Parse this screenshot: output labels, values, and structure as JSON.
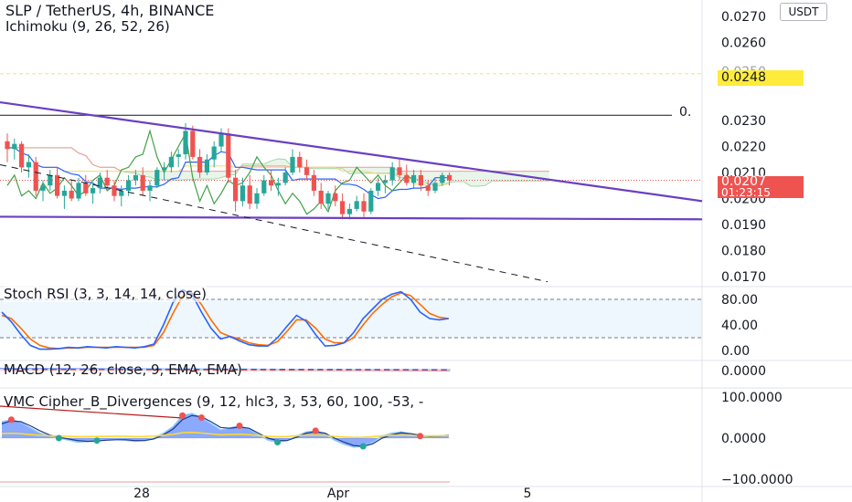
{
  "header": {
    "symbol": "SLP / TetherUS, 4h, BINANCE",
    "indicator": "Ichimoku (9, 26, 52, 26)",
    "currency": "USDT"
  },
  "price_badges": {
    "yellow_level": "0.0248",
    "yellow_level_behind": "0.0250",
    "current_price": "0.0207",
    "countdown": "01:23:15",
    "line_label": "0."
  },
  "panes": {
    "stoch_title": "Stoch RSI (3, 3, 14, 14, close)",
    "macd_title": "MACD (12, 26, close, 9, EMA, EMA)",
    "vmc_title": "VMC Cipher_B_Divergences (9, 12, hlc3, 3, 53, 60, 100, -53, -"
  },
  "colors": {
    "bull": "#26a69a",
    "bear": "#ef5350",
    "trendline": "#6a3fc1",
    "stoch_k": "#2962ff",
    "stoch_d": "#ff6d00",
    "yellow_badge": "#ffeb3b",
    "price_badge": "#ef5350"
  },
  "chart_data": [
    {
      "type": "candlestick",
      "title": "SLP / TetherUS, 4h, BINANCE",
      "y_ticks": [
        "0.0270",
        "0.0260",
        "0.0250",
        "0.0230",
        "0.0220",
        "0.0210",
        "0.0200",
        "0.0190",
        "0.0180",
        "0.0170"
      ],
      "x_ticks": [
        "28",
        "Apr",
        "5"
      ],
      "current_price": 0.0207,
      "horizontal_levels": [
        0.0248,
        0.0232
      ],
      "trendlines": [
        {
          "name": "descending resistance",
          "from": [
            0,
            0.0237
          ],
          "to": [
            1,
            0.0199
          ]
        },
        {
          "name": "support",
          "from": [
            0,
            0.0193
          ],
          "to": [
            1,
            0.0192
          ]
        },
        {
          "name": "dashed projection",
          "from": [
            0,
            0.0213
          ],
          "to": [
            0.78,
            0.0168
          ]
        }
      ],
      "candles": [
        [
          0.0222,
          0.0225,
          0.0214,
          0.0219
        ],
        [
          0.0219,
          0.0223,
          0.0215,
          0.0221
        ],
        [
          0.0221,
          0.0222,
          0.021,
          0.0212
        ],
        [
          0.0212,
          0.0217,
          0.0208,
          0.0214
        ],
        [
          0.0214,
          0.0216,
          0.0201,
          0.0203
        ],
        [
          0.0203,
          0.0207,
          0.0199,
          0.0205
        ],
        [
          0.0205,
          0.0211,
          0.0203,
          0.0209
        ],
        [
          0.0209,
          0.0212,
          0.02,
          0.0201
        ],
        [
          0.0201,
          0.0205,
          0.0196,
          0.0203
        ],
        [
          0.0203,
          0.0207,
          0.0199,
          0.02
        ],
        [
          0.02,
          0.0208,
          0.0199,
          0.0206
        ],
        [
          0.0206,
          0.0209,
          0.0201,
          0.0202
        ],
        [
          0.0202,
          0.0206,
          0.0198,
          0.0204
        ],
        [
          0.0204,
          0.021,
          0.0202,
          0.0208
        ],
        [
          0.0208,
          0.0211,
          0.0203,
          0.0205
        ],
        [
          0.0205,
          0.0207,
          0.0199,
          0.0201
        ],
        [
          0.0201,
          0.0205,
          0.0197,
          0.0203
        ],
        [
          0.0203,
          0.0209,
          0.0201,
          0.0207
        ],
        [
          0.0207,
          0.0211,
          0.0205,
          0.0209
        ],
        [
          0.0209,
          0.0212,
          0.0201,
          0.0203
        ],
        [
          0.0203,
          0.0207,
          0.0199,
          0.0205
        ],
        [
          0.0205,
          0.0212,
          0.0204,
          0.0211
        ],
        [
          0.0211,
          0.0214,
          0.0207,
          0.0212
        ],
        [
          0.0212,
          0.0218,
          0.021,
          0.0216
        ],
        [
          0.0216,
          0.0219,
          0.0212,
          0.0217
        ],
        [
          0.0217,
          0.0229,
          0.0215,
          0.0226
        ],
        [
          0.0226,
          0.0228,
          0.0215,
          0.0216
        ],
        [
          0.0216,
          0.0219,
          0.0208,
          0.021
        ],
        [
          0.021,
          0.0217,
          0.0209,
          0.0215
        ],
        [
          0.0215,
          0.0222,
          0.0212,
          0.022
        ],
        [
          0.022,
          0.0227,
          0.0218,
          0.0225
        ],
        [
          0.0225,
          0.0227,
          0.0206,
          0.0208
        ],
        [
          0.0208,
          0.0211,
          0.0195,
          0.0199
        ],
        [
          0.0199,
          0.0208,
          0.0197,
          0.0205
        ],
        [
          0.0205,
          0.0209,
          0.0196,
          0.0198
        ],
        [
          0.0198,
          0.0204,
          0.0196,
          0.0202
        ],
        [
          0.0202,
          0.0209,
          0.0201,
          0.0207
        ],
        [
          0.0207,
          0.0211,
          0.0203,
          0.0205
        ],
        [
          0.0205,
          0.0208,
          0.0201,
          0.0206
        ],
        [
          0.0206,
          0.0212,
          0.0205,
          0.021
        ],
        [
          0.021,
          0.0219,
          0.0209,
          0.0216
        ],
        [
          0.0216,
          0.0218,
          0.021,
          0.0212
        ],
        [
          0.0212,
          0.0215,
          0.0207,
          0.0209
        ],
        [
          0.0209,
          0.0211,
          0.0201,
          0.0203
        ],
        [
          0.0203,
          0.0206,
          0.0196,
          0.0198
        ],
        [
          0.0198,
          0.0203,
          0.0196,
          0.0202
        ],
        [
          0.0202,
          0.0205,
          0.0197,
          0.0199
        ],
        [
          0.0199,
          0.0202,
          0.0192,
          0.0194
        ],
        [
          0.0194,
          0.0198,
          0.0192,
          0.0196
        ],
        [
          0.0196,
          0.0201,
          0.0195,
          0.0199
        ],
        [
          0.0199,
          0.0202,
          0.0193,
          0.0195
        ],
        [
          0.0195,
          0.0204,
          0.0194,
          0.0203
        ],
        [
          0.0203,
          0.0208,
          0.0201,
          0.0206
        ],
        [
          0.0206,
          0.0209,
          0.0202,
          0.0207
        ],
        [
          0.0207,
          0.0214,
          0.0205,
          0.0212
        ],
        [
          0.0212,
          0.0215,
          0.0207,
          0.0209
        ],
        [
          0.0209,
          0.0213,
          0.0205,
          0.0206
        ],
        [
          0.0206,
          0.0211,
          0.0204,
          0.0209
        ],
        [
          0.0209,
          0.0211,
          0.0203,
          0.0205
        ],
        [
          0.0205,
          0.0207,
          0.0201,
          0.0203
        ],
        [
          0.0203,
          0.0208,
          0.0202,
          0.0206
        ],
        [
          0.0206,
          0.021,
          0.0205,
          0.0209
        ],
        [
          0.0209,
          0.021,
          0.0205,
          0.0207
        ]
      ]
    },
    {
      "type": "line",
      "title": "Stoch RSI (3, 3, 14, 14, close)",
      "y_ticks": [
        "80.00",
        "40.00",
        "0.00"
      ],
      "band": [
        20,
        80
      ],
      "series": [
        {
          "values": [
            60,
            45,
            25,
            8,
            2,
            2,
            3,
            5,
            4,
            6,
            5,
            4,
            6,
            5,
            4,
            6,
            10,
            40,
            75,
            95,
            88,
            60,
            35,
            18,
            22,
            15,
            9,
            7,
            7,
            20,
            38,
            55,
            46,
            25,
            7,
            8,
            12,
            28,
            50,
            65,
            80,
            88,
            92,
            80,
            60,
            50,
            48,
            50
          ]
        },
        {
          "values": [
            55,
            50,
            35,
            18,
            8,
            4,
            3,
            4,
            4,
            5,
            5,
            5,
            5,
            5,
            5,
            5,
            8,
            28,
            58,
            85,
            90,
            72,
            48,
            28,
            22,
            18,
            12,
            9,
            8,
            14,
            30,
            48,
            48,
            35,
            18,
            12,
            12,
            20,
            40,
            58,
            72,
            84,
            90,
            86,
            72,
            58,
            52,
            50
          ]
        }
      ]
    },
    {
      "type": "line",
      "title": "MACD (12, 26, close, 9, EMA, EMA)",
      "y_ticks": [
        "0.0000"
      ]
    },
    {
      "type": "area",
      "title": "VMC Cipher_B_Divergences (9, 12, hlc3, 3, 53, 60, 100, -53, -",
      "y_ticks": [
        "100.0000",
        "0.0000",
        "−100.0000"
      ],
      "series": [
        {
          "values": [
            40,
            45,
            38,
            25,
            12,
            5,
            0,
            -5,
            -10,
            -8,
            -6,
            -4,
            -3,
            -5,
            -8,
            -6,
            0,
            12,
            28,
            55,
            60,
            50,
            35,
            20,
            25,
            30,
            22,
            8,
            -5,
            -10,
            -6,
            5,
            15,
            18,
            10,
            -5,
            -15,
            -22,
            -20,
            -10,
            5,
            12,
            15,
            10,
            5,
            3,
            5,
            8
          ]
        },
        {
          "values": [
            35,
            42,
            40,
            30,
            18,
            8,
            2,
            -2,
            -6,
            -8,
            -7,
            -5,
            -4,
            -4,
            -6,
            -6,
            -2,
            8,
            22,
            45,
            55,
            52,
            40,
            26,
            24,
            27,
            24,
            12,
            0,
            -6,
            -6,
            2,
            12,
            16,
            12,
            0,
            -10,
            -18,
            -20,
            -14,
            0,
            8,
            13,
            11,
            7,
            4,
            5,
            7
          ]
        }
      ]
    }
  ]
}
